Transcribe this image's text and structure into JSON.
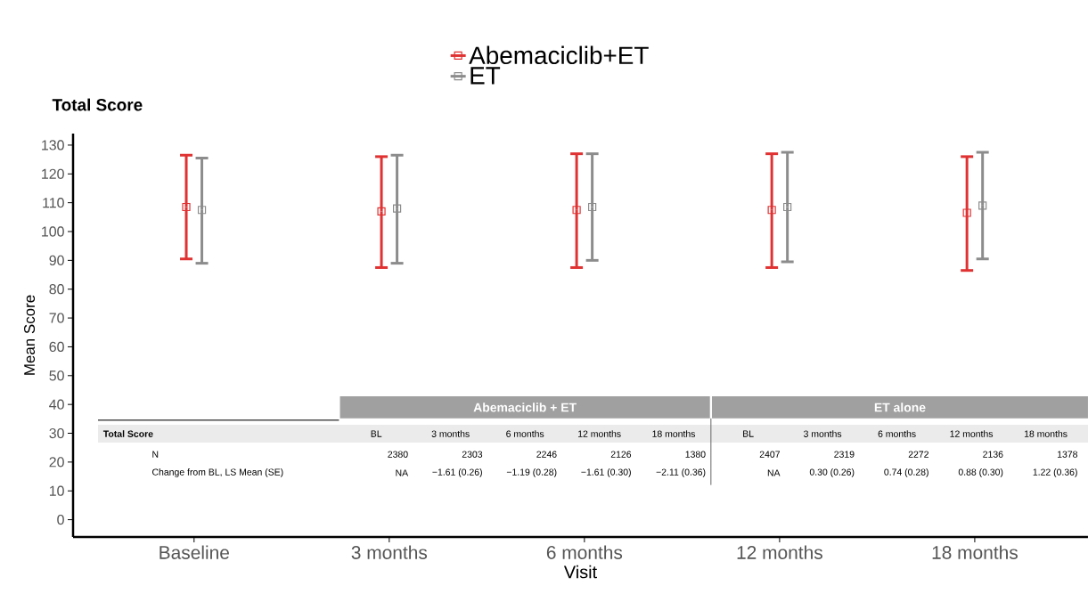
{
  "chart_data": {
    "type": "scatter",
    "title": "Total Score",
    "xlabel": "Visit",
    "ylabel": "Mean Score",
    "categories": [
      "Baseline",
      "3 months",
      "6 months",
      "12 months",
      "18 months"
    ],
    "series": [
      {
        "name": "Abemaciclib+ET",
        "color": "#e03232",
        "values": [
          108.5,
          107,
          107.5,
          107.5,
          106.5
        ],
        "errors": [
          [
            90.5,
            126.5
          ],
          [
            87.5,
            126
          ],
          [
            87.5,
            127
          ],
          [
            87.5,
            127
          ],
          [
            86.5,
            126
          ]
        ]
      },
      {
        "name": "ET",
        "color": "#8c8c8c",
        "values": [
          107.5,
          108,
          108.5,
          108.5,
          109
        ],
        "errors": [
          [
            89,
            125.5
          ],
          [
            89,
            126.5
          ],
          [
            90,
            127
          ],
          [
            89.5,
            127.5
          ],
          [
            90.5,
            127.5
          ]
        ]
      }
    ],
    "ylim": [
      -6,
      134
    ],
    "yticks": [
      0,
      10,
      20,
      30,
      40,
      50,
      60,
      70,
      80,
      90,
      100,
      110,
      120,
      130
    ],
    "marker": "square",
    "legend": "top",
    "annotations": [
      "Abemaciclib + ET",
      "ET alone",
      "Total Score",
      "BL",
      "3 months",
      "6 months",
      "12 months",
      "18 months",
      "BL",
      "3 months",
      "6 months",
      "12 months",
      "18 months",
      "N",
      "2380",
      "2303",
      "2246",
      "2126",
      "1380",
      "2407",
      "2319",
      "2272",
      "2136",
      "1378",
      "Change from BL, LS Mean (SE)",
      "NA",
      "−1.61 (0.26)",
      "−1.19 (0.28)",
      "−1.61 (0.30)",
      "−2.11 (0.36)",
      "NA",
      "0.30 (0.26)",
      "0.74 (0.28)",
      "0.88 (0.30)",
      "1.22 (0.36)"
    ]
  }
}
